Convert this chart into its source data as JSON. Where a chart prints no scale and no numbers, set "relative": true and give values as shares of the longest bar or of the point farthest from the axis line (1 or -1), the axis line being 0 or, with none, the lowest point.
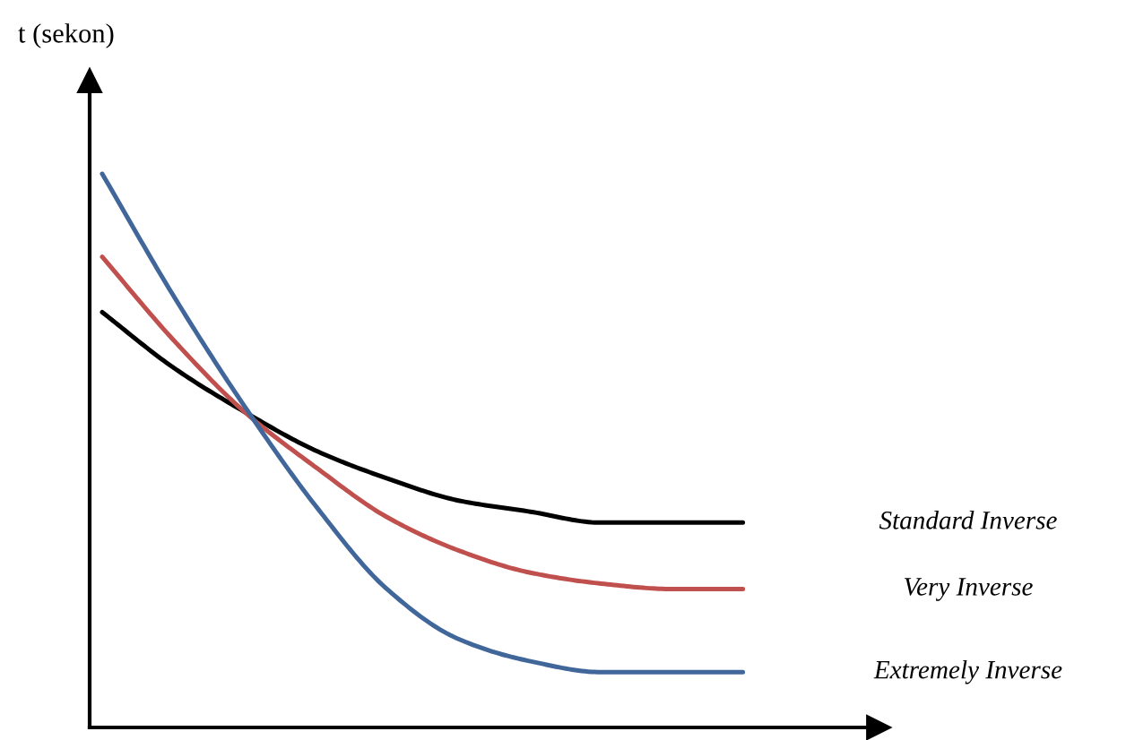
{
  "chart_data": {
    "type": "line",
    "relative": true,
    "ylabel": "t (sekon)",
    "categories": [
      null,
      null,
      null,
      null,
      null,
      null,
      null,
      null,
      null,
      null
    ],
    "series": [
      {
        "name": "Standard Inverse",
        "color": "#000000",
        "values": [
          0.75,
          0.65,
          0.57,
          0.5,
          0.45,
          0.41,
          0.39,
          0.37,
          0.37,
          0.37
        ]
      },
      {
        "name": "Very Inverse",
        "color": "#c0504d",
        "values": [
          0.85,
          0.7,
          0.57,
          0.47,
          0.38,
          0.32,
          0.28,
          0.26,
          0.25,
          0.25
        ]
      },
      {
        "name": "Extremely Inverse",
        "color": "#41679a",
        "values": [
          1.0,
          0.78,
          0.58,
          0.4,
          0.25,
          0.16,
          0.12,
          0.1,
          0.1,
          0.1
        ]
      }
    ]
  }
}
